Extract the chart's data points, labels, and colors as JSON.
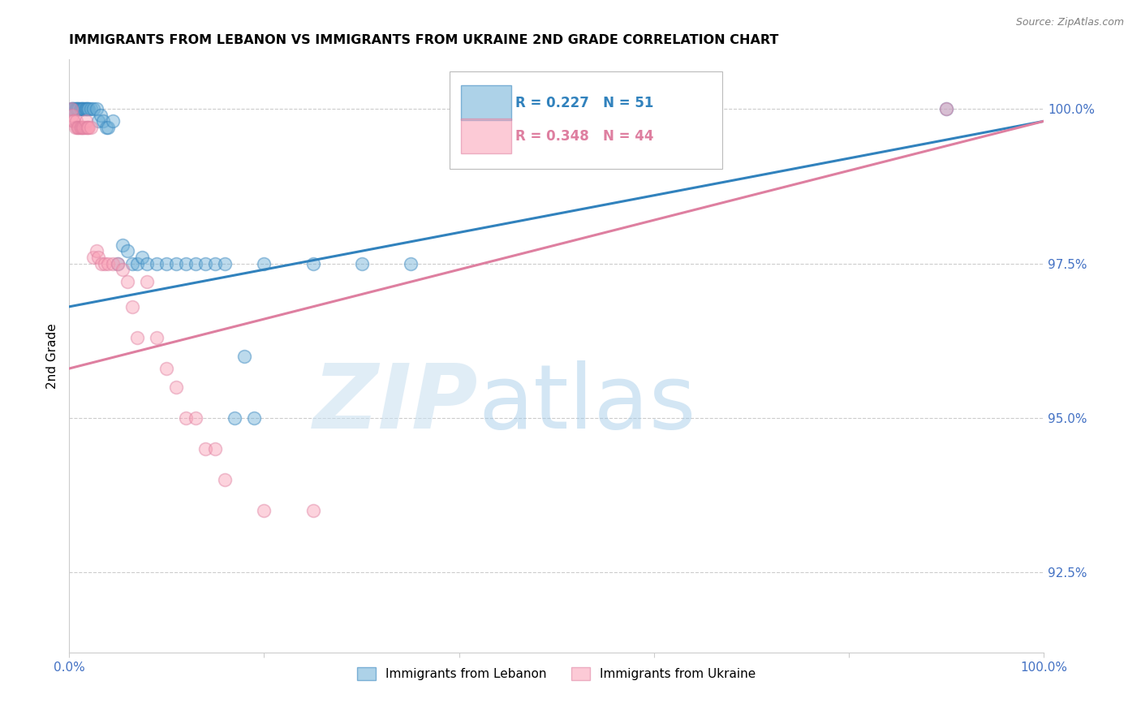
{
  "title": "IMMIGRANTS FROM LEBANON VS IMMIGRANTS FROM UKRAINE 2ND GRADE CORRELATION CHART",
  "source": "Source: ZipAtlas.com",
  "ylabel": "2nd Grade",
  "xlim": [
    0,
    1
  ],
  "ylim": [
    0.912,
    1.008
  ],
  "yticks": [
    0.925,
    0.95,
    0.975,
    1.0
  ],
  "ytick_labels": [
    "92.5%",
    "95.0%",
    "97.5%",
    "100.0%"
  ],
  "xticks": [
    0.0,
    0.2,
    0.4,
    0.6,
    0.8,
    1.0
  ],
  "xtick_labels": [
    "0.0%",
    "",
    "",
    "",
    "",
    "100.0%"
  ],
  "legend_label1": "Immigrants from Lebanon",
  "legend_label2": "Immigrants from Ukraine",
  "R_lebanon": 0.227,
  "N_lebanon": 51,
  "R_ukraine": 0.348,
  "N_ukraine": 44,
  "blue_color": "#6baed6",
  "pink_color": "#fa9fb5",
  "line_blue": "#3182bd",
  "line_pink": "#de7fa0",
  "lebanon_x": [
    0.002,
    0.003,
    0.004,
    0.005,
    0.006,
    0.007,
    0.008,
    0.009,
    0.01,
    0.011,
    0.012,
    0.013,
    0.014,
    0.015,
    0.016,
    0.017,
    0.018,
    0.019,
    0.02,
    0.022,
    0.025,
    0.028,
    0.03,
    0.032,
    0.035,
    0.038,
    0.04,
    0.045,
    0.05,
    0.055,
    0.06,
    0.065,
    0.07,
    0.075,
    0.08,
    0.09,
    0.1,
    0.11,
    0.12,
    0.13,
    0.14,
    0.15,
    0.16,
    0.17,
    0.18,
    0.19,
    0.2,
    0.25,
    0.3,
    0.35,
    0.9
  ],
  "lebanon_y": [
    1.0,
    1.0,
    1.0,
    1.0,
    1.0,
    1.0,
    1.0,
    1.0,
    1.0,
    1.0,
    1.0,
    1.0,
    1.0,
    1.0,
    1.0,
    1.0,
    1.0,
    1.0,
    1.0,
    1.0,
    1.0,
    1.0,
    0.998,
    0.999,
    0.998,
    0.997,
    0.997,
    0.998,
    0.975,
    0.978,
    0.977,
    0.975,
    0.975,
    0.976,
    0.975,
    0.975,
    0.975,
    0.975,
    0.975,
    0.975,
    0.975,
    0.975,
    0.975,
    0.95,
    0.96,
    0.95,
    0.975,
    0.975,
    0.975,
    0.975,
    1.0
  ],
  "ukraine_x": [
    0.002,
    0.003,
    0.004,
    0.005,
    0.006,
    0.007,
    0.008,
    0.009,
    0.01,
    0.011,
    0.012,
    0.013,
    0.014,
    0.015,
    0.016,
    0.017,
    0.018,
    0.019,
    0.02,
    0.022,
    0.025,
    0.028,
    0.03,
    0.033,
    0.036,
    0.04,
    0.045,
    0.05,
    0.055,
    0.06,
    0.065,
    0.07,
    0.08,
    0.09,
    0.1,
    0.11,
    0.12,
    0.13,
    0.14,
    0.15,
    0.16,
    0.2,
    0.25,
    0.9
  ],
  "ukraine_y": [
    1.0,
    0.999,
    0.998,
    0.998,
    0.997,
    0.998,
    0.997,
    0.997,
    0.997,
    0.997,
    0.997,
    0.997,
    0.997,
    0.997,
    0.997,
    0.998,
    0.997,
    0.997,
    0.997,
    0.997,
    0.976,
    0.977,
    0.976,
    0.975,
    0.975,
    0.975,
    0.975,
    0.975,
    0.974,
    0.972,
    0.968,
    0.963,
    0.972,
    0.963,
    0.958,
    0.955,
    0.95,
    0.95,
    0.945,
    0.945,
    0.94,
    0.935,
    0.935,
    1.0
  ],
  "trendline_x_start": 0.0,
  "trendline_x_end": 1.0,
  "leb_trend_y_start": 0.968,
  "leb_trend_y_end": 0.998,
  "ukr_trend_y_start": 0.958,
  "ukr_trend_y_end": 0.998
}
